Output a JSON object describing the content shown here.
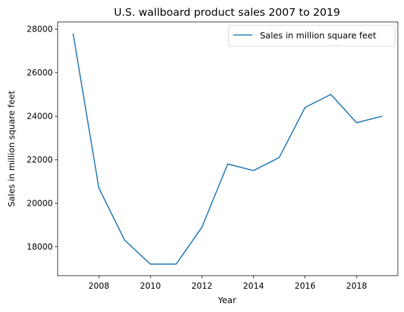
{
  "chart_data": {
    "type": "line",
    "title": "U.S. wallboard product sales 2007 to 2019",
    "xlabel": "Year",
    "ylabel": "Sales in million square feet",
    "x": [
      2007,
      2008,
      2009,
      2010,
      2011,
      2012,
      2013,
      2014,
      2015,
      2016,
      2017,
      2018,
      2019
    ],
    "series": [
      {
        "name": "Sales in million square feet",
        "values": [
          27800,
          20700,
          18300,
          17200,
          17200,
          18900,
          21800,
          21500,
          22100,
          24400,
          25000,
          23700,
          24000
        ],
        "color": "#1f77b4"
      }
    ],
    "xlim": [
      2006.4,
      2019.6
    ],
    "ylim": [
      16670,
      28330
    ],
    "xticks": [
      2008,
      2010,
      2012,
      2014,
      2016,
      2018
    ],
    "yticks": [
      18000,
      20000,
      22000,
      24000,
      26000,
      28000
    ],
    "xtick_labels": [
      "2008",
      "2010",
      "2012",
      "2014",
      "2016",
      "2018"
    ],
    "ytick_labels": [
      "18000",
      "20000",
      "22000",
      "24000",
      "26000",
      "28000"
    ],
    "grid": false,
    "legend_position": "top-right"
  }
}
